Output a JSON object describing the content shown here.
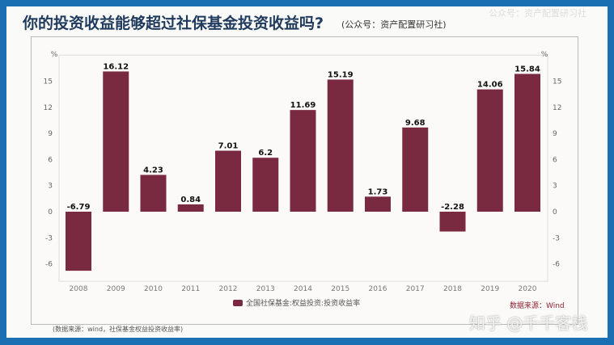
{
  "title": "你的投资收益能够超过社保基金投资收益吗?",
  "subtitle": "(公众号：资产配置研习社)",
  "watermark_top": "公众号：资产配置研习社",
  "source": "(数据来源：wind，社保基金权益投资收益率)",
  "watermark": "知乎 @千千客栈",
  "watermark_source": "数据来源：Wind",
  "chart_data": {
    "type": "bar",
    "categories": [
      "2008",
      "2009",
      "2010",
      "2011",
      "2012",
      "2013",
      "2014",
      "2015",
      "2016",
      "2017",
      "2018",
      "2019",
      "2020"
    ],
    "series": [
      {
        "name": "全国社保基金:权益投资:投资收益率",
        "values": [
          -6.79,
          16.12,
          4.23,
          0.84,
          7.01,
          6.2,
          11.69,
          15.19,
          1.73,
          9.68,
          -2.28,
          14.06,
          15.84
        ],
        "labels": [
          "-6.79",
          "16.12",
          "4.23",
          "0.84",
          "7.01",
          "6.2",
          "11.69",
          "15.19",
          "1.73",
          "9.68",
          "-2.28",
          "14.06",
          "15.84"
        ]
      }
    ],
    "yticks": [
      -6,
      -3,
      0,
      3,
      6,
      9,
      12,
      15
    ],
    "yunit": "%",
    "ylim": [
      -8,
      18
    ],
    "color": "#7a2a40",
    "grid": false,
    "legend": "bottom"
  }
}
